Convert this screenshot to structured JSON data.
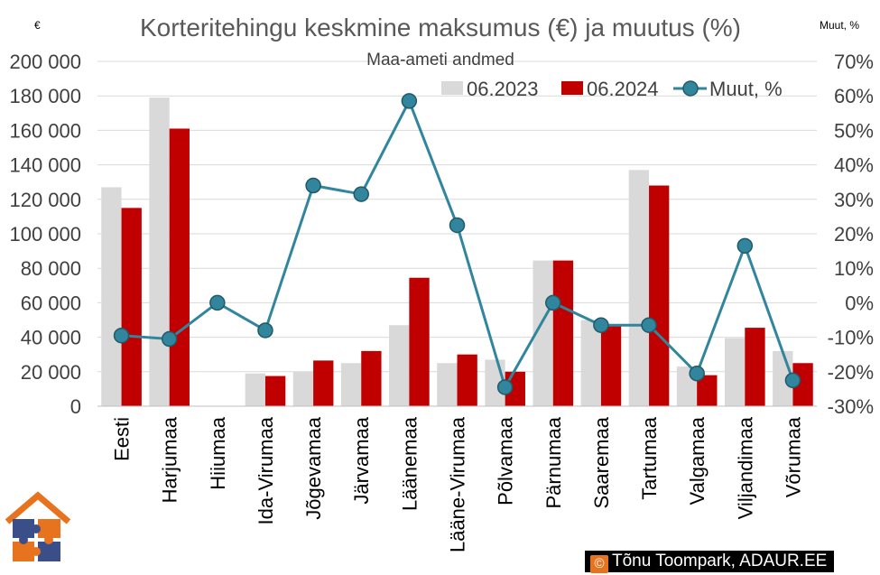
{
  "chart_data": {
    "type": "bar",
    "title": "Korteritehingu keskmine maksumus (€) ja muutus (%)",
    "subtitle": "Maa-ameti andmed",
    "left_unit": "€",
    "right_unit": "Muut, %",
    "categories": [
      "Eesti",
      "Harjumaa",
      "Hiiumaa",
      "Ida-Virumaa",
      "Jõgevamaa",
      "Järvamaa",
      "Läänemaa",
      "Lääne-Virumaa",
      "Põlvamaa",
      "Pärnumaa",
      "Saaremaa",
      "Tartumaa",
      "Valgamaa",
      "Viljandimaa",
      "Võrumaa"
    ],
    "series": [
      {
        "name": "06.2023",
        "kind": "bar",
        "axis": "left",
        "color": "#d9d9d9",
        "values": [
          127000,
          179000,
          null,
          19000,
          20000,
          25000,
          47000,
          25000,
          27000,
          84500,
          50000,
          137000,
          23000,
          39500,
          32000
        ]
      },
      {
        "name": "06.2024",
        "kind": "bar",
        "axis": "left",
        "color": "#c00000",
        "values": [
          115000,
          161000,
          null,
          17500,
          26500,
          32000,
          74500,
          30000,
          20000,
          84500,
          47000,
          128000,
          18000,
          45500,
          25000
        ]
      },
      {
        "name": "Muut, %",
        "kind": "line",
        "axis": "right",
        "color": "#31859c",
        "values": [
          -9.5,
          -10.5,
          0,
          -8,
          34,
          31.5,
          58.5,
          22.5,
          -24.5,
          0,
          -6.5,
          -6.5,
          -20.5,
          16.5,
          -22.5
        ]
      }
    ],
    "ylim": [
      0,
      200000
    ],
    "yticks": [
      "0",
      "20 000",
      "40 000",
      "60 000",
      "80 000",
      "100 000",
      "120 000",
      "140 000",
      "160 000",
      "180 000",
      "200 000"
    ],
    "y2lim": [
      -30,
      70
    ],
    "y2ticks": [
      "-30%",
      "-20%",
      "-10%",
      "0%",
      "10%",
      "20%",
      "30%",
      "40%",
      "50%",
      "60%",
      "70%"
    ],
    "legend": "top-right",
    "grid": true
  },
  "credit": {
    "copyright_symbol": "©",
    "text": "Tõnu Toompark, ADAUR.EE"
  },
  "logo": {
    "name": "house-puzzle-logo",
    "colors": [
      "#e8731f",
      "#3a4f8a"
    ]
  }
}
